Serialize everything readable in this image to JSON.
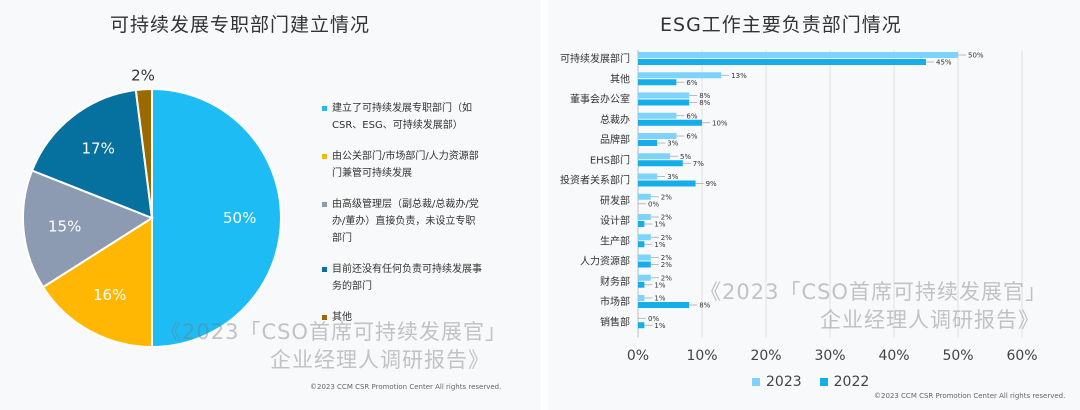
{
  "left": {
    "title": "可持续发展专职部门建立情况",
    "watermark_line1": "《2023「CSO首席可持续发展官」",
    "watermark_line2": "企业经理人调研报告》",
    "copyright": "©2023 CCM CSR Promotion Center All rights reserved."
  },
  "right": {
    "title": "ESG工作主要负责部门情况",
    "watermark_line1": "《2023「CSO首席可持续发展官」",
    "watermark_line2": "企业经理人调研报告》",
    "copyright": "©2023 CCM CSR Promotion Center All rights reserved."
  },
  "chart_data": [
    {
      "type": "pie",
      "title": "可持续发展专职部门建立情况",
      "slices": [
        {
          "label": "建立了可持续发展专职部门（如CSR、ESG、可持续发展部）",
          "legend_lines": [
            "建立了可持续发展专职部门（如",
            "CSR、ESG、可持续发展部）"
          ],
          "value": 50,
          "display": "50%",
          "color": "#1ebcf5"
        },
        {
          "label": "由公关部门/市场部门/人力资源部门兼管可持续发展",
          "legend_lines": [
            "由公关部门/市场部门/人力资源部",
            "门兼管可持续发展"
          ],
          "value": 16,
          "display": "16%",
          "color": "#ffb703"
        },
        {
          "label": "由高级管理层（副总裁/总裁办/党办/董办）直接负责，未设立专职部门",
          "legend_lines": [
            "由高级管理层（副总裁/总裁办/党",
            "办/董办）直接负责，未设立专职",
            "部门"
          ],
          "value": 15,
          "display": "15%",
          "color": "#8c9bb1"
        },
        {
          "label": "目前还没有任何负责可持续发展事务的部门",
          "legend_lines": [
            "目前还没有任何负责可持续发展事",
            "务的部门"
          ],
          "value": 17,
          "display": "17%",
          "color": "#06709f"
        },
        {
          "label": "其他",
          "legend_lines": [
            "其他"
          ],
          "value": 2,
          "display": "2%",
          "color": "#9a6a00"
        }
      ]
    },
    {
      "type": "bar",
      "orientation": "horizontal",
      "title": "ESG工作主要负责部门情况",
      "categories": [
        "可持续发展部门",
        "其他",
        "董事会办公室",
        "总裁办",
        "品牌部",
        "EHS部门",
        "投资者关系部门",
        "研发部",
        "设计部",
        "生产部",
        "人力资源部",
        "财务部",
        "市场部",
        "销售部"
      ],
      "series": [
        {
          "name": "2023",
          "color": "#7dd3fb",
          "values": [
            50,
            13,
            8,
            6,
            6,
            5,
            3,
            2,
            2,
            2,
            2,
            2,
            1,
            0
          ]
        },
        {
          "name": "2022",
          "color": "#16aee8",
          "values": [
            45,
            6,
            8,
            10,
            3,
            7,
            9,
            0,
            1,
            1,
            2,
            1,
            8,
            1
          ]
        }
      ],
      "xlim": [
        0,
        60
      ],
      "x_ticks": [
        "0%",
        "10%",
        "20%",
        "30%",
        "40%",
        "50%",
        "60%"
      ],
      "grid": true,
      "legend": "bottom"
    }
  ]
}
